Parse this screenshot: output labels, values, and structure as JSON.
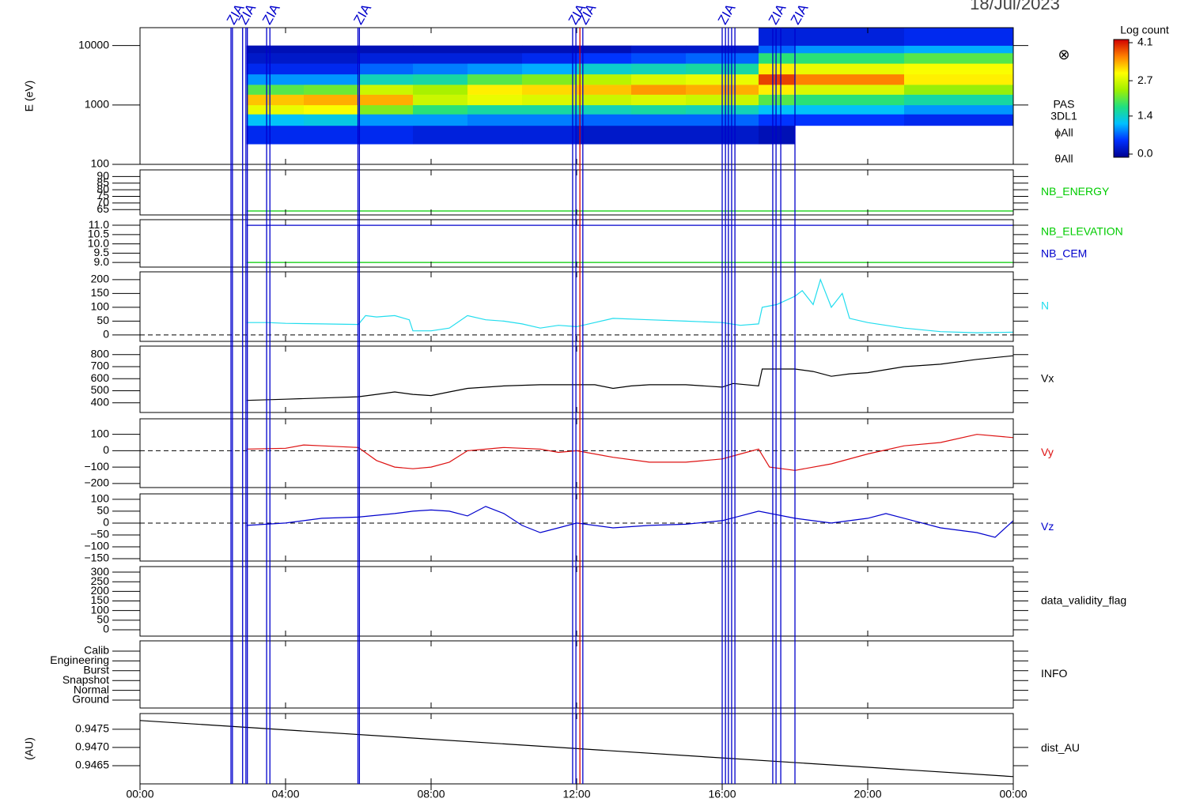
{
  "chart_data": {
    "type": "multi-panel",
    "title": "18/Jul/2023",
    "xlim": [
      0,
      24
    ],
    "xticks": [
      {
        "value": 0,
        "label": "00:00"
      },
      {
        "value": 4,
        "label": "04:00"
      },
      {
        "value": 8,
        "label": "08:00"
      },
      {
        "value": 12,
        "label": "12:00"
      },
      {
        "value": 16,
        "label": "16:00"
      },
      {
        "value": 20,
        "label": "20:00"
      },
      {
        "value": 24,
        "label": "00:00"
      }
    ],
    "events": [
      {
        "x": 2.5,
        "color": "#0000cc",
        "label": "ZIA"
      },
      {
        "x": 2.54,
        "color": "#0000cc"
      },
      {
        "x": 2.82,
        "color": "#0000cc",
        "label": "ZIA"
      },
      {
        "x": 2.91,
        "color": "#0000cc"
      },
      {
        "x": 2.95,
        "color": "#0000cc"
      },
      {
        "x": 3.48,
        "color": "#0000cc",
        "label": "ZIA"
      },
      {
        "x": 3.57,
        "color": "#0000cc"
      },
      {
        "x": 5.99,
        "color": "#0000cc",
        "label": "ZIA"
      },
      {
        "x": 6.03,
        "color": "#0000cc"
      },
      {
        "x": 11.89,
        "color": "#0000cc",
        "label": "ZIA"
      },
      {
        "x": 11.98,
        "color": "#0000cc"
      },
      {
        "x": 12.09,
        "color": "#dd0000"
      },
      {
        "x": 12.17,
        "color": "#0000cc",
        "label": "ZIA"
      },
      {
        "x": 16.0,
        "color": "#0000cc",
        "label": "ZIA"
      },
      {
        "x": 16.09,
        "color": "#0000cc"
      },
      {
        "x": 16.17,
        "color": "#0000cc"
      },
      {
        "x": 16.26,
        "color": "#0000cc"
      },
      {
        "x": 16.35,
        "color": "#0000cc"
      },
      {
        "x": 17.39,
        "color": "#0000cc",
        "label": "ZIA"
      },
      {
        "x": 17.48,
        "color": "#0000cc"
      },
      {
        "x": 17.61,
        "color": "#0000cc"
      },
      {
        "x": 18.0,
        "color": "#0000cc",
        "label": "ZIA"
      }
    ],
    "panels": [
      {
        "type": "heatmap",
        "ylabel": "E (eV)",
        "ylog": true,
        "ylim": [
          100,
          20000
        ],
        "yticks": [
          100,
          1000,
          10000
        ],
        "x_edges": [
          2.93,
          4.5,
          6,
          7.5,
          9,
          10.5,
          12,
          13.5,
          15,
          17,
          18,
          21,
          24
        ],
        "y_edges": [
          220,
          450,
          700,
          1000,
          1500,
          2200,
          3300,
          5000,
          7500,
          10000,
          20000
        ],
        "z": [
          [
            0.5,
            1.2,
            2.8,
            3.2,
            2.0,
            1.0,
            0.5,
            0.3,
            0.2,
            null
          ],
          [
            0.5,
            1.3,
            2.9,
            3.3,
            2.1,
            1.0,
            0.5,
            0.3,
            0.2,
            null
          ],
          [
            0.5,
            1.0,
            2.2,
            3.3,
            2.6,
            1.5,
            0.8,
            0.4,
            0.2,
            null
          ],
          [
            0.4,
            1.0,
            1.8,
            2.6,
            2.4,
            1.6,
            0.9,
            0.4,
            0.2,
            null
          ],
          [
            0.4,
            0.9,
            1.6,
            2.8,
            3.0,
            2.0,
            1.0,
            0.4,
            0.2,
            null
          ],
          [
            0.4,
            0.9,
            1.6,
            2.7,
            3.1,
            2.2,
            1.1,
            0.5,
            0.2,
            null
          ],
          [
            0.3,
            0.8,
            1.5,
            2.6,
            3.2,
            2.5,
            1.4,
            0.6,
            0.2,
            null
          ],
          [
            0.3,
            0.8,
            1.6,
            2.7,
            3.4,
            2.7,
            1.5,
            0.7,
            0.3,
            null
          ],
          [
            0.3,
            0.8,
            1.5,
            2.6,
            3.3,
            2.8,
            1.6,
            0.8,
            0.3,
            null
          ],
          [
            0.2,
            0.6,
            1.2,
            2.0,
            3.0,
            3.8,
            3.0,
            1.8,
            0.8,
            0.4
          ],
          [
            null,
            0.6,
            1.2,
            1.8,
            2.7,
            3.5,
            2.8,
            1.8,
            1.0,
            0.4
          ],
          [
            null,
            0.5,
            1.0,
            1.6,
            2.3,
            3.0,
            2.9,
            2.0,
            1.1,
            0.5
          ]
        ],
        "zlim": [
          0,
          4.1
        ],
        "zticks": [
          {
            "value": 0,
            "label": "0.0"
          },
          1.4,
          2.7,
          4.1
        ],
        "colorbar_title": "Log count",
        "colormap": [
          "#000090",
          "#0030ff",
          "#00c0ff",
          "#20e080",
          "#a0f000",
          "#ffff00",
          "#ff8000",
          "#d00000"
        ],
        "symbol": "⊗",
        "labels": [
          "PAS",
          "3DL1",
          "ϕAll",
          "θAll"
        ]
      },
      {
        "type": "line",
        "ylim": [
          61,
          95
        ],
        "yticks": [
          65,
          70,
          75,
          80,
          85,
          90
        ],
        "series": [
          {
            "name": "NB_ENERGY",
            "color": "#00cc00",
            "x": [
              2.93,
              24
            ],
            "values": [
              64,
              64
            ]
          }
        ]
      },
      {
        "type": "line",
        "ylim": [
          8.75,
          11.3
        ],
        "yticks": [
          {
            "value": 9,
            "label": "9.0"
          },
          9.5,
          {
            "value": 10,
            "label": "10.0"
          },
          10.5,
          {
            "value": 11,
            "label": "11.0"
          }
        ],
        "series": [
          {
            "name": "NB_ELEVATION",
            "color": "#00cc00",
            "x": [
              2.93,
              24
            ],
            "values": [
              9,
              9
            ]
          },
          {
            "name": "NB_CEM",
            "color": "#0000cc",
            "x": [
              2.93,
              24
            ],
            "values": [
              11,
              11
            ]
          }
        ]
      },
      {
        "type": "line",
        "ylim": [
          -23,
          228
        ],
        "yticks": [
          0,
          50,
          100,
          150,
          200
        ],
        "zero_line": true,
        "series": [
          {
            "name": "N",
            "color": "#22ddee",
            "x": [
              2.93,
              3.5,
              4,
              5,
              6,
              6.2,
              6.5,
              7,
              7.4,
              7.5,
              8,
              8.5,
              9,
              9.5,
              10,
              10.5,
              11,
              11.5,
              12,
              12.5,
              13,
              14,
              15,
              16,
              16.5,
              17,
              17.1,
              17.5,
              18,
              18.2,
              18.5,
              18.7,
              19,
              19.3,
              19.5,
              20,
              21,
              22,
              23,
              24
            ],
            "values": [
              45,
              45,
              42,
              40,
              38,
              70,
              65,
              70,
              55,
              15,
              15,
              25,
              70,
              55,
              50,
              40,
              25,
              35,
              30,
              45,
              60,
              55,
              50,
              45,
              35,
              40,
              100,
              110,
              140,
              160,
              110,
              200,
              100,
              150,
              60,
              45,
              25,
              12,
              8,
              10
            ]
          }
        ]
      },
      {
        "type": "line",
        "ylim": [
          320,
          870
        ],
        "yticks": [
          400,
          500,
          600,
          700,
          800
        ],
        "series": [
          {
            "name": "Vx",
            "color": "#000000",
            "x": [
              2.93,
              4,
              5,
              6,
              6.5,
              7,
              7.5,
              8,
              8.5,
              9,
              10,
              11,
              12,
              12.5,
              13,
              13.5,
              14,
              15,
              16,
              16.3,
              17,
              17.1,
              18,
              18.5,
              19,
              19.5,
              20,
              21,
              22,
              23,
              24
            ],
            "values": [
              420,
              430,
              440,
              450,
              470,
              490,
              470,
              460,
              490,
              520,
              540,
              550,
              550,
              550,
              520,
              540,
              550,
              550,
              530,
              560,
              540,
              680,
              680,
              660,
              620,
              640,
              650,
              700,
              720,
              760,
              790
            ]
          }
        ]
      },
      {
        "type": "line",
        "ylim": [
          -225,
          195
        ],
        "yticks": [
          {
            "value": -200,
            "label": "−200"
          },
          {
            "value": -100,
            "label": "−100"
          },
          0,
          100
        ],
        "zero_line": true,
        "series": [
          {
            "name": "Vy",
            "color": "#dd1111",
            "x": [
              2.93,
              4,
              4.5,
              5,
              6,
              6.5,
              7,
              7.5,
              8,
              8.5,
              9,
              10,
              11,
              11.5,
              12,
              13,
              14,
              15,
              16,
              16.5,
              17,
              17.3,
              18,
              19,
              20,
              21,
              22,
              23,
              24
            ],
            "values": [
              10,
              15,
              35,
              30,
              20,
              -60,
              -100,
              -110,
              -100,
              -70,
              0,
              20,
              10,
              -10,
              0,
              -40,
              -70,
              -70,
              -50,
              -20,
              10,
              -100,
              -120,
              -80,
              -20,
              30,
              50,
              100,
              80
            ]
          }
        ]
      },
      {
        "type": "line",
        "ylim": [
          -160,
          123
        ],
        "yticks": [
          {
            "value": -150,
            "label": "−150"
          },
          {
            "value": -100,
            "label": "−100"
          },
          {
            "value": -50,
            "label": "−50"
          },
          0,
          50,
          100
        ],
        "zero_line": true,
        "series": [
          {
            "name": "Vz",
            "color": "#0000cc",
            "x": [
              2.93,
              4,
              5,
              6,
              7,
              7.5,
              8,
              8.5,
              9,
              9.5,
              10,
              10.5,
              11,
              11.5,
              12,
              13,
              14,
              15,
              16,
              16.5,
              17,
              18,
              19,
              20,
              20.5,
              21,
              22,
              23,
              23.5,
              24
            ],
            "values": [
              -10,
              0,
              20,
              25,
              40,
              50,
              55,
              50,
              30,
              70,
              40,
              -10,
              -40,
              -20,
              0,
              -20,
              -10,
              -5,
              10,
              30,
              50,
              20,
              0,
              20,
              40,
              20,
              -20,
              -40,
              -60,
              10
            ]
          }
        ]
      },
      {
        "type": "line",
        "label": "data_validity_flag",
        "ylim": [
          -33,
          329
        ],
        "yticks": [
          0,
          50,
          100,
          150,
          200,
          250,
          300
        ],
        "series": []
      },
      {
        "type": "category",
        "label": "INFO",
        "categories": [
          "Calib",
          "Engineering",
          "Burst",
          "Snapshot",
          "Normal",
          "Ground"
        ]
      },
      {
        "type": "line",
        "ylabel": "(AU)",
        "ylim": [
          0.946,
          0.94793
        ],
        "yticks": [
          0.9465,
          {
            "value": 0.947,
            "label": "0.9470"
          },
          0.9475
        ],
        "series": [
          {
            "name": "dist_AU",
            "color": "#000000",
            "x": [
              0,
              24
            ],
            "values": [
              0.94774,
              0.9462
            ]
          }
        ]
      }
    ]
  }
}
